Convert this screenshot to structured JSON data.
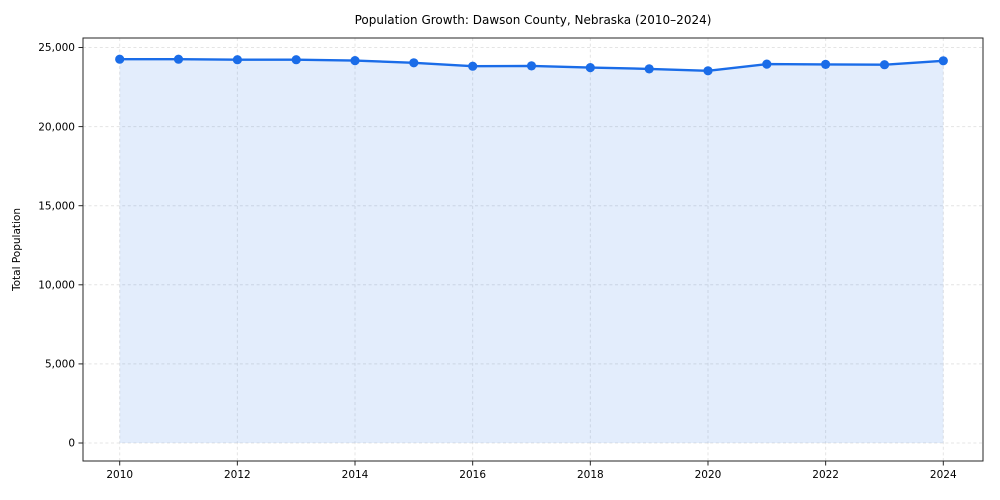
{
  "figure": {
    "background": "#ffffff"
  },
  "chart_data": {
    "type": "area",
    "title": "Population Growth: Dawson County, Nebraska (2010–2024)",
    "xlabel": "",
    "ylabel": "Total Population",
    "x": [
      2010,
      2011,
      2012,
      2013,
      2014,
      2015,
      2016,
      2017,
      2018,
      2019,
      2020,
      2021,
      2022,
      2023,
      2024
    ],
    "series": [
      {
        "name": "Total Population",
        "values": [
          24260,
          24260,
          24230,
          24230,
          24170,
          24030,
          23820,
          23840,
          23730,
          23650,
          23530,
          23950,
          23930,
          23910,
          24160
        ]
      }
    ],
    "ylim": [
      0,
      25000
    ],
    "yticks": [
      0,
      5000,
      10000,
      15000,
      20000,
      25000
    ],
    "xticks": [
      2010,
      2012,
      2014,
      2016,
      2018,
      2020,
      2022,
      2024
    ],
    "grid": true,
    "grid_style": "dashed",
    "legend_position": "none",
    "marker": "circle",
    "colors": {
      "line": "#1a6ce8",
      "marker": "#1a6ce8",
      "fill": "rgba(26,108,232,0.12)",
      "grid": "#e4e4e4",
      "spine": "#262626",
      "text": "#000000"
    }
  }
}
